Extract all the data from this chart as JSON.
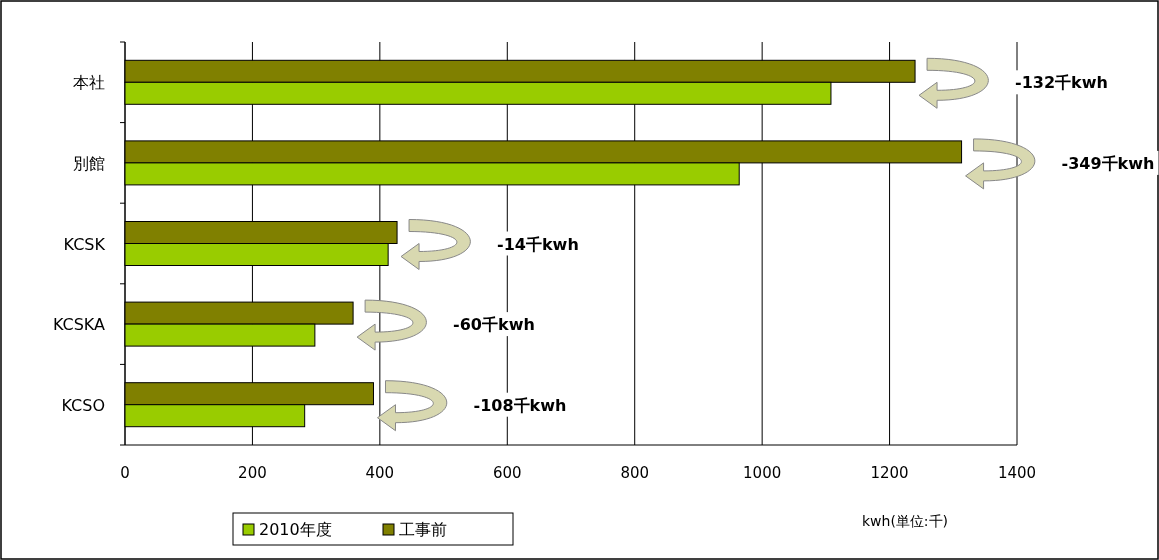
{
  "chart_data": {
    "type": "bar",
    "orientation": "horizontal",
    "categories": [
      "本社",
      "別館",
      "KCSK",
      "KCSKA",
      "KCSO"
    ],
    "series": [
      {
        "name": "工事前",
        "color": "#808000",
        "values": [
          1240,
          1313,
          427,
          358,
          390
        ]
      },
      {
        "name": "2010年度",
        "color": "#99cc00",
        "values": [
          1108,
          964,
          413,
          298,
          282
        ]
      }
    ],
    "xlim": [
      0,
      1400
    ],
    "xticks": [
      0,
      200,
      400,
      600,
      800,
      1000,
      1200,
      1400
    ],
    "grid": "x",
    "legend": "bottom",
    "annotations": [
      "-132千kwh",
      "-349千kwh",
      "-14千kwh",
      "-60千kwh",
      "-108千kwh",
      "kwh(単位:千)"
    ]
  }
}
